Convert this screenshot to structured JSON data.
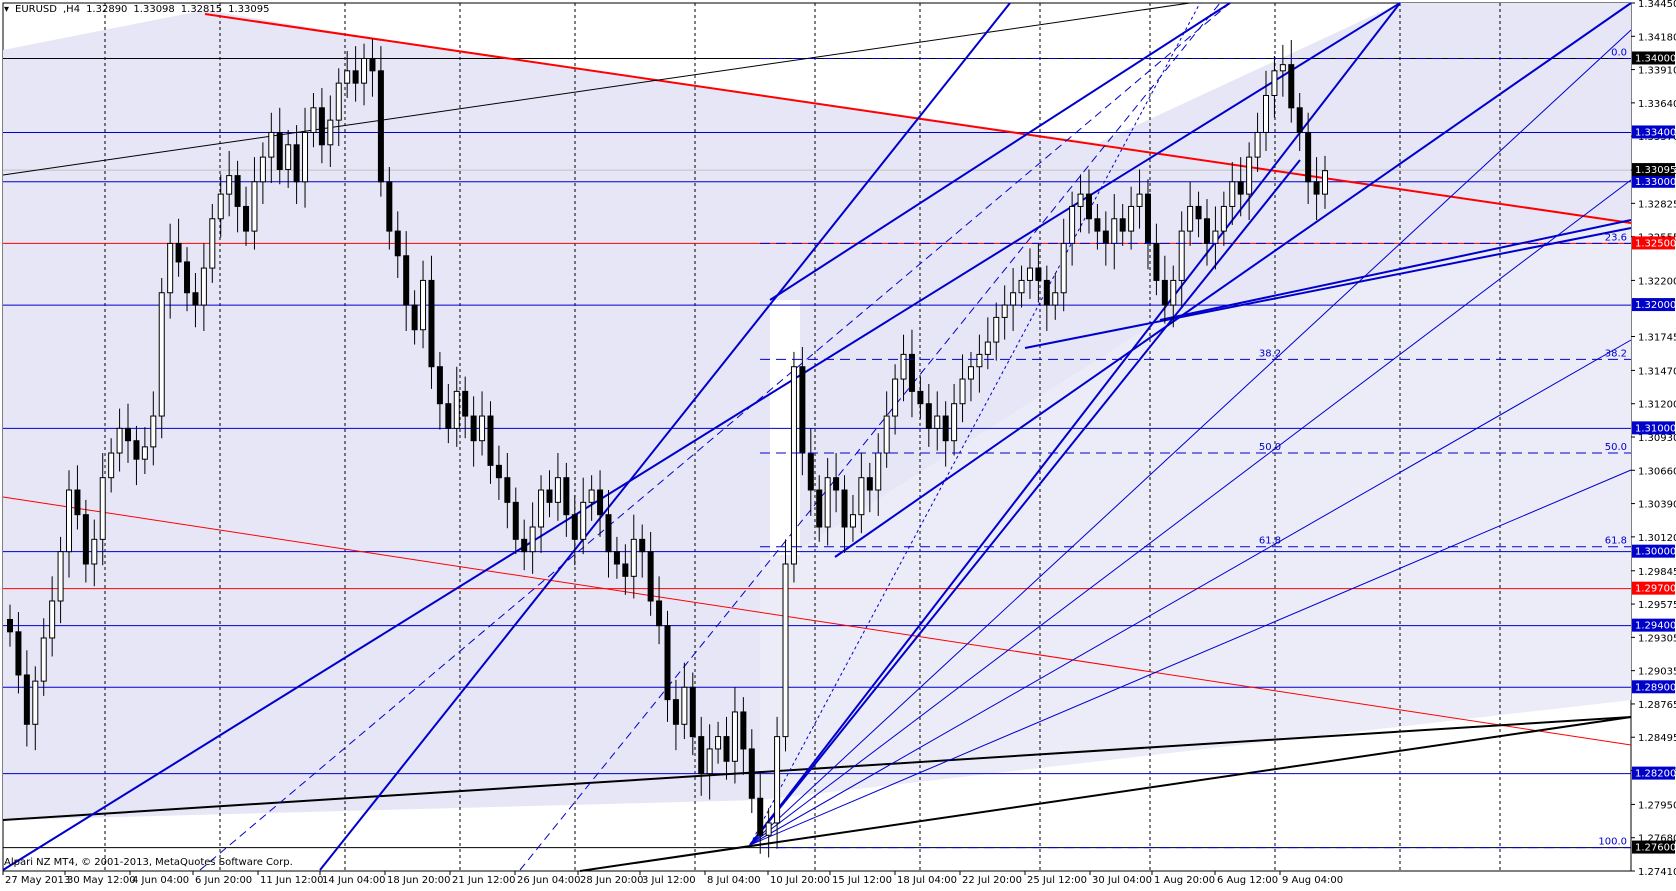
{
  "chart_data": {
    "type": "candlestick",
    "symbol": "EURUSD",
    "timeframe": "H4",
    "ohlc": {
      "open": "1.32890",
      "high": "1.33098",
      "low": "1.32815",
      "close": "1.33095"
    },
    "current_price": "1.33095",
    "broker": "Alpari NZ MT4, © 2001-2013, MetaQuotes Software Corp.",
    "ylim": [
      1.2741,
      1.3445
    ],
    "y_ticks": [
      "1.34450",
      "1.34180",
      "1.33910",
      "1.33640",
      "1.33370",
      "1.33095",
      "1.32825",
      "1.32555",
      "1.32200",
      "1.31745",
      "1.31470",
      "1.31200",
      "1.30930",
      "1.30660",
      "1.30390",
      "1.30120",
      "1.29845",
      "1.29575",
      "1.29305",
      "1.29035",
      "1.28765",
      "1.28495",
      "1.28225",
      "1.27950",
      "1.27680",
      "1.27410"
    ],
    "x_labels": [
      "27 May 2013",
      "30 May 12:00",
      "4 Jun 04:00",
      "6 Jun 20:00",
      "11 Jun 12:00",
      "14 Jun 04:00",
      "18 Jun 20:00",
      "21 Jun 12:00",
      "26 Jun 04:00",
      "28 Jun 20:00",
      "3 Jul 12:00",
      "8 Jul 04:00",
      "10 Jul 20:00",
      "15 Jul 12:00",
      "18 Jul 04:00",
      "22 Jul 20:00",
      "25 Jul 12:00",
      "30 Jul 04:00",
      "1 Aug 20:00",
      "6 Aug 12:00",
      "9 Aug 04:00"
    ],
    "horizontal_levels": [
      {
        "price": 1.34,
        "label": "1.34000",
        "color": "#000000"
      },
      {
        "price": 1.334,
        "label": "1.33400",
        "color": "#0000cc"
      },
      {
        "price": 1.33,
        "label": "1.33000",
        "color": "#0000cc"
      },
      {
        "price": 1.325,
        "label": "1.32500",
        "color": "#ff0000"
      },
      {
        "price": 1.32,
        "label": "1.32000",
        "color": "#0000cc"
      },
      {
        "price": 1.31,
        "label": "1.31000",
        "color": "#0000cc"
      },
      {
        "price": 1.3,
        "label": "1.30000",
        "color": "#0000cc"
      },
      {
        "price": 1.297,
        "label": "1.29700",
        "color": "#ff0000"
      },
      {
        "price": 1.294,
        "label": "1.29400",
        "color": "#0000cc"
      },
      {
        "price": 1.289,
        "label": "1.28900",
        "color": "#0000cc"
      },
      {
        "price": 1.282,
        "label": "1.28200",
        "color": "#0000cc"
      },
      {
        "price": 1.276,
        "label": "1.27600",
        "color": "#000000"
      }
    ],
    "fibonacci": [
      {
        "level": "0.0",
        "price": 1.34
      },
      {
        "level": "23.6",
        "price": 1.325
      },
      {
        "level": "38.2",
        "price": 1.3156
      },
      {
        "level": "50.0",
        "price": 1.308
      },
      {
        "level": "61.8",
        "price": 1.3004
      },
      {
        "level": "100.0",
        "price": 1.276
      }
    ],
    "closes": [
      1.2935,
      1.29,
      1.286,
      1.2895,
      1.293,
      1.296,
      1.3,
      1.305,
      1.303,
      1.299,
      1.301,
      1.306,
      1.308,
      1.31,
      1.309,
      1.3075,
      1.3085,
      1.311,
      1.321,
      1.325,
      1.3235,
      1.321,
      1.32,
      1.323,
      1.327,
      1.329,
      1.3305,
      1.328,
      1.326,
      1.33,
      1.332,
      1.334,
      1.331,
      1.333,
      1.33,
      1.334,
      1.336,
      1.333,
      1.335,
      1.338,
      1.339,
      1.338,
      1.34,
      1.339,
      1.33,
      1.326,
      1.324,
      1.32,
      1.318,
      1.322,
      1.315,
      1.312,
      1.31,
      1.313,
      1.311,
      1.309,
      1.311,
      1.307,
      1.306,
      1.304,
      1.301,
      1.3,
      1.302,
      1.305,
      1.304,
      1.306,
      1.303,
      1.301,
      1.304,
      1.305,
      1.303,
      1.3,
      1.299,
      1.298,
      1.301,
      1.3,
      1.296,
      1.294,
      1.288,
      1.286,
      1.289,
      1.285,
      1.282,
      1.284,
      1.285,
      1.283,
      1.287,
      1.284,
      1.28,
      1.277,
      1.278,
      1.285,
      1.299,
      1.315,
      1.308,
      1.305,
      1.302,
      1.306,
      1.305,
      1.302,
      1.303,
      1.306,
      1.305,
      1.308,
      1.311,
      1.314,
      1.316,
      1.313,
      1.312,
      1.31,
      1.311,
      1.309,
      1.312,
      1.314,
      1.315,
      1.316,
      1.317,
      1.319,
      1.32,
      1.321,
      1.322,
      1.323,
      1.322,
      1.32,
      1.321,
      1.325,
      1.328,
      1.329,
      1.327,
      1.326,
      1.325,
      1.327,
      1.326,
      1.328,
      1.329,
      1.325,
      1.322,
      1.32,
      1.322,
      1.326,
      1.328,
      1.327,
      1.325,
      1.326,
      1.328,
      1.33,
      1.329,
      1.332,
      1.334,
      1.337,
      1.339,
      1.3395,
      1.336,
      1.334,
      1.33,
      1.329,
      1.3309
    ]
  }
}
